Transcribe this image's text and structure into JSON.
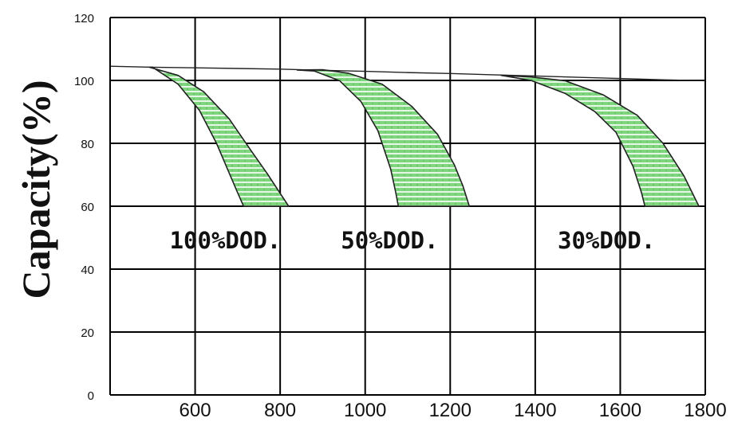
{
  "chart_data": {
    "type": "area",
    "title": "",
    "xlabel": "",
    "ylabel": "Capacity(%)",
    "xlim": [
      400,
      1800
    ],
    "ylim": [
      0,
      120
    ],
    "grid": true,
    "x_ticks": [
      "600",
      "800",
      "1000",
      "1200",
      "1400",
      "1600",
      "1800"
    ],
    "y_ticks": [
      "0",
      "20",
      "40",
      "60",
      "80",
      "100",
      "120"
    ],
    "baseline": {
      "points": [
        [
          400,
          104.5
        ],
        [
          500,
          104.2
        ],
        [
          700,
          103.8
        ],
        [
          800,
          103.6
        ],
        [
          900,
          103.2
        ],
        [
          1000,
          102.9
        ],
        [
          1100,
          102.5
        ],
        [
          1200,
          102.2
        ],
        [
          1300,
          101.8
        ],
        [
          1400,
          101.4
        ],
        [
          1500,
          101.0
        ],
        [
          1600,
          100.6
        ],
        [
          1700,
          100.2
        ],
        [
          1800,
          99.9
        ]
      ]
    },
    "bands": [
      {
        "label": "100%DOD.",
        "upper": [
          [
            492,
            104.2
          ],
          [
            560,
            101.6
          ],
          [
            620,
            96.4
          ],
          [
            680,
            87.8
          ],
          [
            730,
            78.0
          ],
          [
            770,
            70.3
          ],
          [
            800,
            64.1
          ],
          [
            820,
            60.0
          ]
        ],
        "lower": [
          [
            500,
            104.2
          ],
          [
            560,
            98.8
          ],
          [
            610,
            90.5
          ],
          [
            650,
            80.1
          ],
          [
            680,
            70.6
          ],
          [
            700,
            64.3
          ],
          [
            714,
            60.0
          ]
        ]
      },
      {
        "label": "50%DOD.",
        "upper": [
          [
            840,
            103.3
          ],
          [
            900,
            103.4
          ],
          [
            960,
            102.3
          ],
          [
            1040,
            98.8
          ],
          [
            1110,
            91.7
          ],
          [
            1170,
            82.9
          ],
          [
            1210,
            73.1
          ],
          [
            1230,
            66.4
          ],
          [
            1245,
            60.0
          ]
        ],
        "lower": [
          [
            840,
            103.3
          ],
          [
            880,
            103.0
          ],
          [
            940,
            99.9
          ],
          [
            990,
            93.3
          ],
          [
            1030,
            84.0
          ],
          [
            1060,
            71.8
          ],
          [
            1072,
            64.3
          ],
          [
            1078,
            60.0
          ]
        ]
      },
      {
        "label": "30%DOD.",
        "upper": [
          [
            1320,
            101.6
          ],
          [
            1390,
            101.1
          ],
          [
            1470,
            99.9
          ],
          [
            1560,
            95.4
          ],
          [
            1640,
            88.9
          ],
          [
            1700,
            80.1
          ],
          [
            1750,
            69.6
          ],
          [
            1785,
            60.0
          ]
        ],
        "lower": [
          [
            1320,
            101.6
          ],
          [
            1390,
            100.0
          ],
          [
            1470,
            95.9
          ],
          [
            1540,
            90.1
          ],
          [
            1590,
            83.5
          ],
          [
            1630,
            72.7
          ],
          [
            1650,
            64.3
          ],
          [
            1658,
            60.0
          ]
        ]
      }
    ],
    "colors": {
      "fill": "#7fd67f",
      "hatch": "#ffffff",
      "outline": "#222222",
      "grid": "#000000"
    }
  }
}
